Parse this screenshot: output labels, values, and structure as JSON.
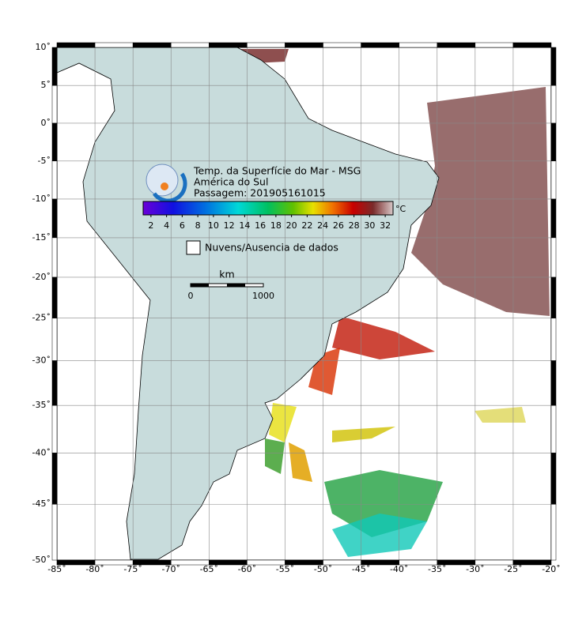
{
  "map": {
    "title_lines": [
      "Temp. da Superfície do Mar - MSG",
      "América do Sul",
      "Passagem: 201905161015"
    ],
    "lonlim": [
      -85,
      -20
    ],
    "latlim": [
      -50,
      10
    ],
    "lonticks": [
      {
        "value": -85,
        "label": "-85˚"
      },
      {
        "value": -80,
        "label": "-80˚"
      },
      {
        "value": -75,
        "label": "-75˚"
      },
      {
        "value": -70,
        "label": "-70˚"
      },
      {
        "value": -65,
        "label": "-65˚"
      },
      {
        "value": -60,
        "label": "-60˚"
      },
      {
        "value": -55,
        "label": "-55˚"
      },
      {
        "value": -50,
        "label": "-50˚"
      },
      {
        "value": -45,
        "label": "-45˚"
      },
      {
        "value": -40,
        "label": "-40˚"
      },
      {
        "value": -35,
        "label": "-35˚"
      },
      {
        "value": -30,
        "label": "-30˚"
      },
      {
        "value": -25,
        "label": "-25˚"
      },
      {
        "value": -20,
        "label": "-20˚"
      }
    ],
    "latticks": [
      {
        "value": 10,
        "label": "10˚"
      },
      {
        "value": 5,
        "label": "5˚"
      },
      {
        "value": 0,
        "label": "0˚"
      },
      {
        "value": -5,
        "label": "-5˚"
      },
      {
        "value": -10,
        "label": "-10˚"
      },
      {
        "value": -15,
        "label": "-15˚"
      },
      {
        "value": -20,
        "label": "-20˚"
      },
      {
        "value": -25,
        "label": "-25˚"
      },
      {
        "value": -30,
        "label": "-30˚"
      },
      {
        "value": -35,
        "label": "-35˚"
      },
      {
        "value": -40,
        "label": "-40˚"
      },
      {
        "value": -45,
        "label": "-45˚"
      },
      {
        "value": -50,
        "label": "-50˚"
      }
    ],
    "colorbar": {
      "unit": "°C",
      "clim": [
        1,
        33
      ],
      "ticks": [
        2,
        4,
        6,
        8,
        10,
        12,
        14,
        16,
        18,
        20,
        22,
        24,
        26,
        28,
        30,
        32
      ]
    },
    "legend": "Nuvens/Ausencia de dados",
    "scale": {
      "unit": "km",
      "labels": [
        "0",
        "1000"
      ]
    }
  }
}
